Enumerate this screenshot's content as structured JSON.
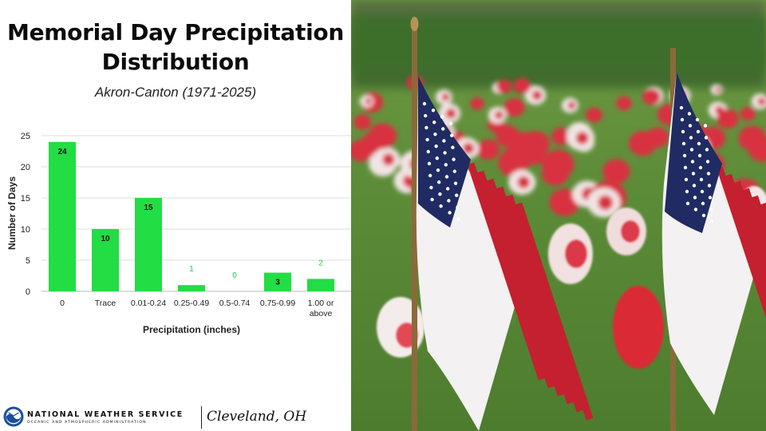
{
  "title": "Memorial Day Precipitation Distribution",
  "subtitle": "Akron-Canton (1971-2025)",
  "chart_data": {
    "type": "bar",
    "categories": [
      "0",
      "Trace",
      "0.01-0.24",
      "0.25-0.49",
      "0.5-0.74",
      "0.75-0.99",
      "1.00 or above"
    ],
    "values": [
      24,
      10,
      15,
      1,
      0,
      3,
      2
    ],
    "xlabel": "Precipitation (inches)",
    "ylabel": "Number of Days",
    "ylim": [
      0,
      25
    ],
    "yticks": [
      0,
      5,
      10,
      15,
      20,
      25
    ],
    "grid": true,
    "legend": "none",
    "colors": {
      "bar": "#22dd44",
      "label_inside": "#111111",
      "label_outside": "#22cc44",
      "grid": "#dddddd"
    }
  },
  "footer": {
    "agency": "NATIONAL WEATHER SERVICE",
    "agency_sub": "OCEANIC AND ATMOSPHERIC ADMINISTRATION",
    "office": "Cleveland, OH",
    "logo_icon": "noaa-logo-icon"
  },
  "photo": {
    "subject": "american-flags-and-flowers-photo",
    "colors": {
      "grass": "#5d8a3a",
      "hedge": "#3d6a2a",
      "flower": "#d8303f",
      "flag_red": "#c4202f",
      "flag_blue": "#1e2a5e"
    }
  }
}
